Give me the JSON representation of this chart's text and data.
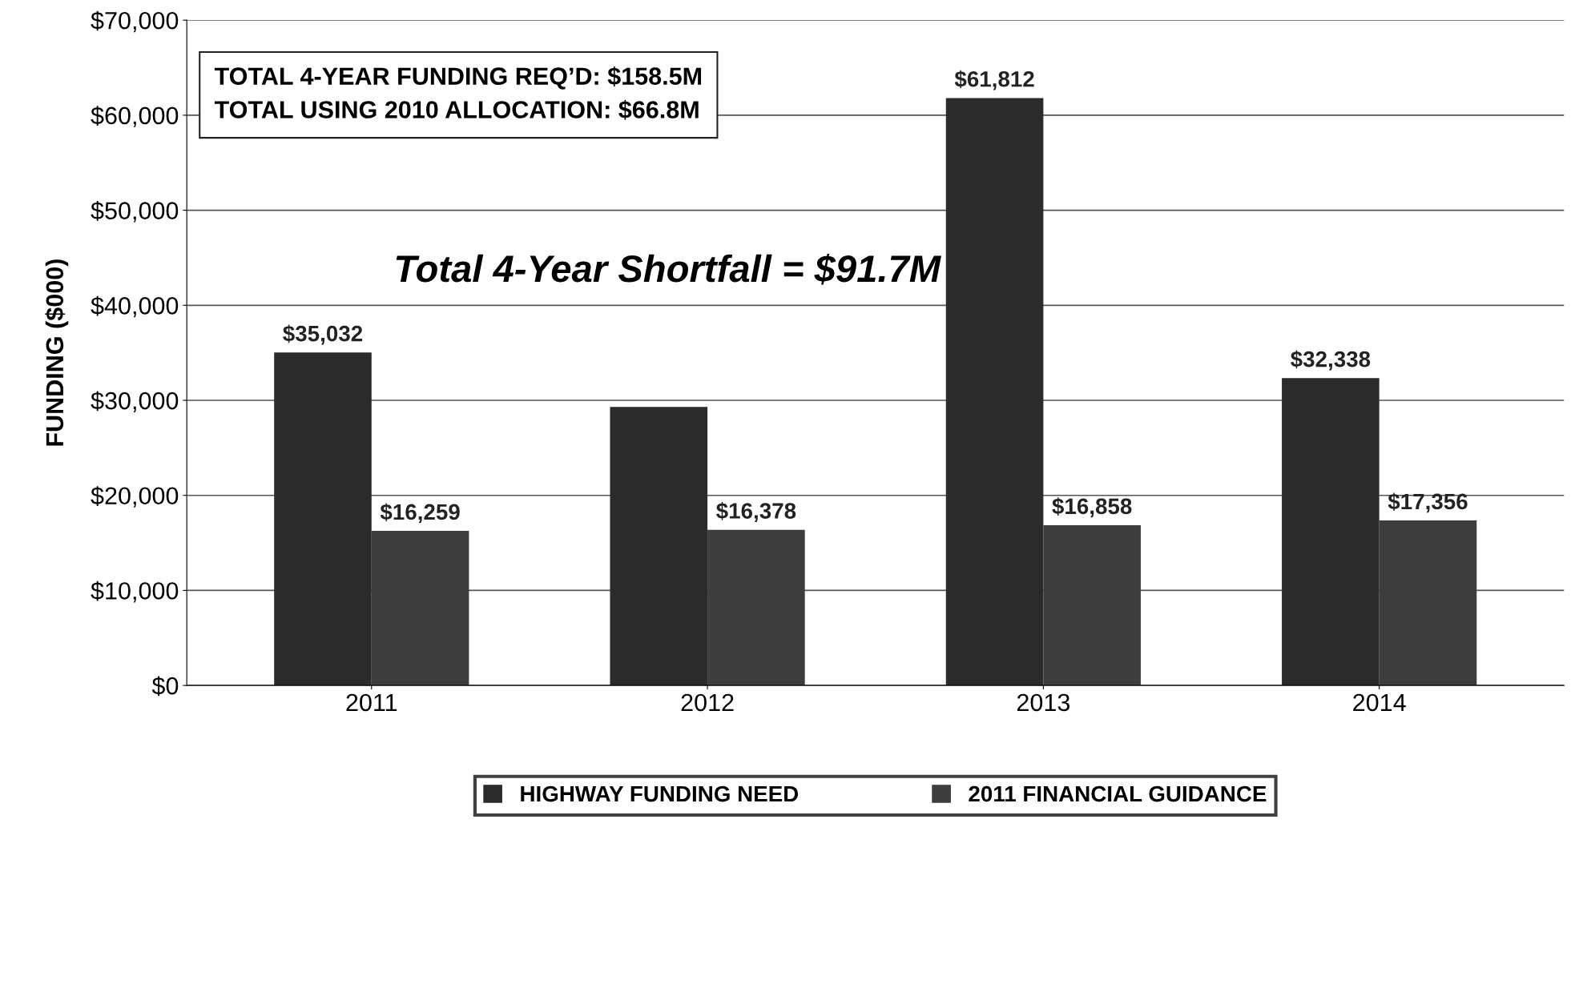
{
  "chart_data": {
    "type": "bar",
    "ylabel": "FUNDING ($000)",
    "categories": [
      "2011",
      "2012",
      "2013",
      "2014"
    ],
    "series": [
      {
        "name": "HIGHWAY FUNDING NEED",
        "color": "#2b2b2b",
        "values": [
          35032,
          29300,
          61812,
          32338
        ],
        "value_labels": [
          "$35,032",
          null,
          "$61,812",
          "$32,338"
        ]
      },
      {
        "name": "2011 FINANCIAL GUIDANCE",
        "color": "#3d3d3d",
        "values": [
          16259,
          16378,
          16858,
          17356
        ],
        "value_labels": [
          "$16,259",
          "$16,378",
          "$16,858",
          "$17,356"
        ]
      }
    ],
    "ylim": [
      0,
      70000
    ],
    "yticks": [
      {
        "value": 0,
        "label": "$0"
      },
      {
        "value": 10000,
        "label": "$10,000"
      },
      {
        "value": 20000,
        "label": "$20,000"
      },
      {
        "value": 30000,
        "label": "$30,000"
      },
      {
        "value": 40000,
        "label": "$40,000"
      },
      {
        "value": 50000,
        "label": "$50,000"
      },
      {
        "value": 60000,
        "label": "$60,000"
      },
      {
        "value": 70000,
        "label": "$70,000"
      }
    ],
    "grid": "y",
    "legend": "bottom",
    "annotations": [
      "TOTAL 4-YEAR FUNDING REQ’D: $158.5M\nTOTAL USING 2010 ALLOCATION: $66.8M",
      "Total 4-Year Shortfall = $91.7M"
    ]
  }
}
